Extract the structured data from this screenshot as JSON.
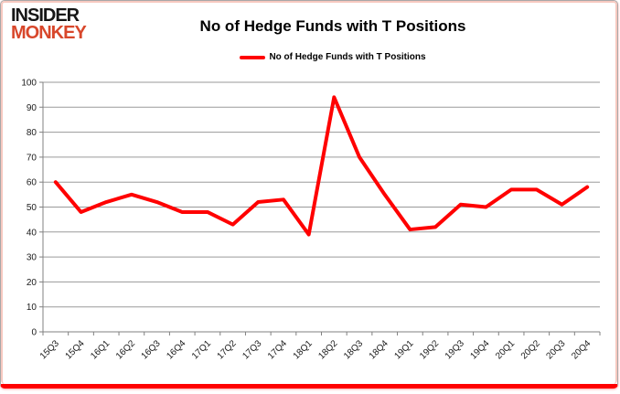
{
  "logo": {
    "line1": "INSIDER",
    "line2": "MONKEY"
  },
  "title": "No of Hedge Funds with T Positions",
  "legend": {
    "label": "No of Hedge Funds with T Positions",
    "marker_color": "#ff0000"
  },
  "colors": {
    "line": "#ff0000",
    "grid": "#9a9a9a",
    "axis": "#808080",
    "tick_text": "#1a1a1a",
    "logo_black": "#161616",
    "logo_red": "#d8472b",
    "frame_gray": "#a8a8a8",
    "frame_pink": "#f7c9c0",
    "frame_bottom_red": "#ff0000"
  },
  "chart_data": {
    "type": "line",
    "title": "No of Hedge Funds with T Positions",
    "categories": [
      "15Q3",
      "15Q4",
      "16Q1",
      "16Q2",
      "16Q3",
      "16Q4",
      "17Q1",
      "17Q2",
      "17Q3",
      "17Q4",
      "18Q1",
      "18Q2",
      "18Q3",
      "18Q4",
      "19Q1",
      "19Q2",
      "19Q3",
      "19Q4",
      "20Q1",
      "20Q2",
      "20Q3",
      "20Q4"
    ],
    "series": [
      {
        "name": "No of Hedge Funds with T Positions",
        "color": "#ff0000",
        "values": [
          60,
          48,
          52,
          55,
          52,
          48,
          48,
          43,
          52,
          53,
          39,
          94,
          70,
          55,
          41,
          42,
          51,
          50,
          57,
          57,
          51,
          58
        ]
      }
    ],
    "xlabel": "",
    "ylabel": "",
    "ylim": [
      0,
      100
    ],
    "yticks": [
      0,
      10,
      20,
      30,
      40,
      50,
      60,
      70,
      80,
      90,
      100
    ],
    "grid": true,
    "legend_position": "top"
  }
}
